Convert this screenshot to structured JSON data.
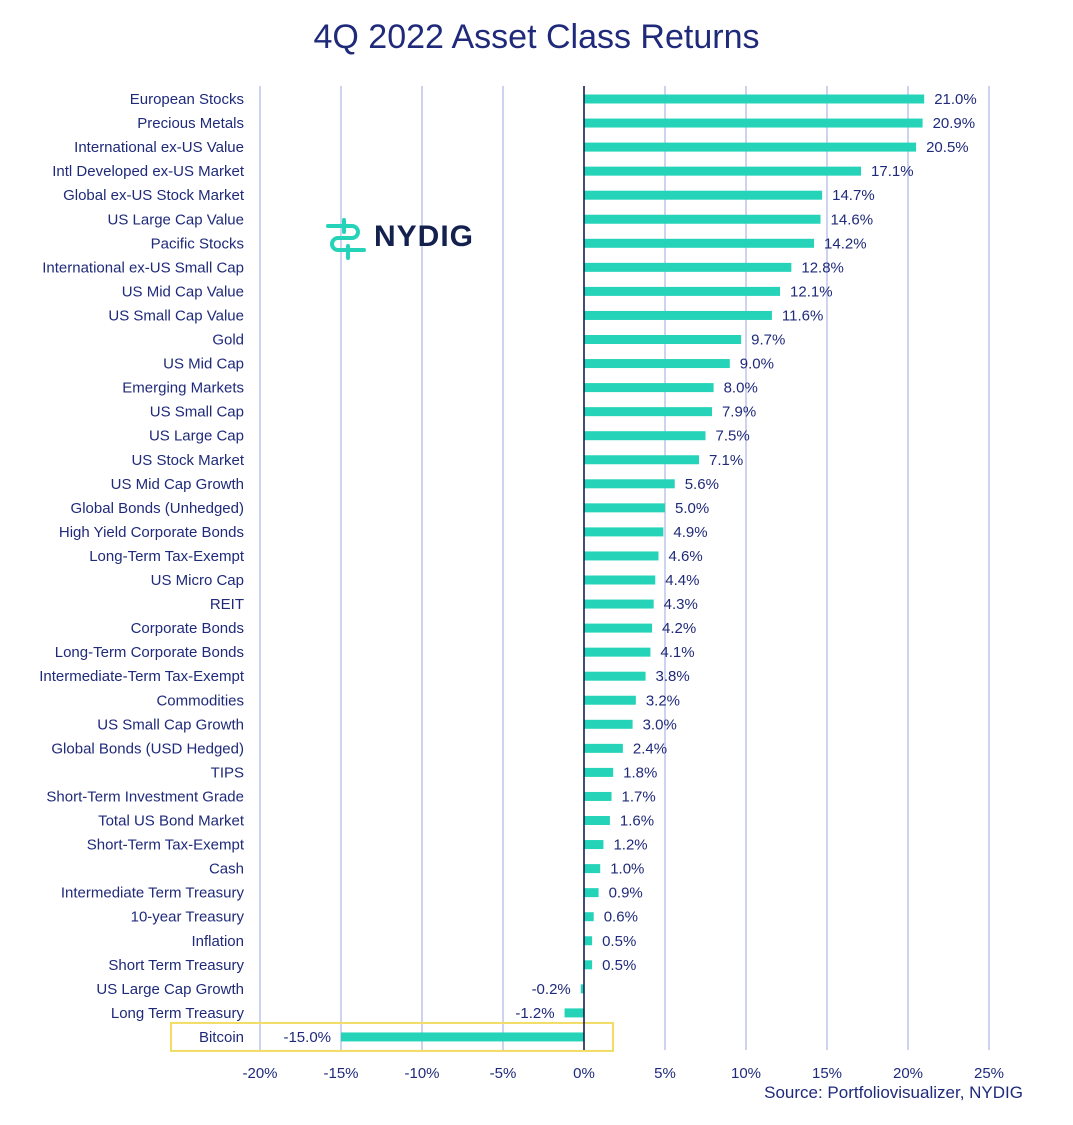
{
  "colors": {
    "bar": "#25d4b8",
    "text": "#1f2a7a",
    "grid": "#b4bbe6",
    "axis": "#14214f",
    "highlight": "#f2dc64"
  },
  "logo": {
    "text": "NYDIG",
    "icon": "nydig-logo-icon"
  },
  "source": "Source: Portfoliovisualizer, NYDIG",
  "chart_data": {
    "type": "bar",
    "orientation": "horizontal",
    "title": "4Q 2022 Asset Class Returns",
    "categories": [
      "European Stocks",
      "Precious Metals",
      "International ex-US Value",
      "Intl Developed ex-US Market",
      "Global ex-US Stock Market",
      "US Large Cap Value",
      "Pacific Stocks",
      "International ex-US Small Cap",
      "US Mid Cap Value",
      "US Small Cap Value",
      "Gold",
      "US Mid Cap",
      "Emerging Markets",
      "US Small Cap",
      "US Large Cap",
      "US Stock Market",
      "US Mid Cap Growth",
      "Global Bonds (Unhedged)",
      "High Yield Corporate Bonds",
      "Long-Term Tax-Exempt",
      "US Micro Cap",
      "REIT",
      "Corporate Bonds",
      "Long-Term Corporate Bonds",
      "Intermediate-Term Tax-Exempt",
      "Commodities",
      "US Small Cap Growth",
      "Global Bonds (USD Hedged)",
      "TIPS",
      "Short-Term Investment Grade",
      "Total US Bond Market",
      "Short-Term Tax-Exempt",
      "Cash",
      "Intermediate Term Treasury",
      "10-year Treasury",
      "Inflation",
      "Short Term Treasury",
      "US Large Cap Growth",
      "Long Term Treasury",
      "Bitcoin"
    ],
    "values": [
      21.0,
      20.9,
      20.5,
      17.1,
      14.7,
      14.6,
      14.2,
      12.8,
      12.1,
      11.6,
      9.7,
      9.0,
      8.0,
      7.9,
      7.5,
      7.1,
      5.6,
      5.0,
      4.9,
      4.6,
      4.4,
      4.3,
      4.2,
      4.1,
      3.8,
      3.2,
      3.0,
      2.4,
      1.8,
      1.7,
      1.6,
      1.2,
      1.0,
      0.9,
      0.6,
      0.5,
      0.5,
      -0.2,
      -1.2,
      -15.0
    ],
    "value_labels": [
      "21.0%",
      "20.9%",
      "20.5%",
      "17.1%",
      "14.7%",
      "14.6%",
      "14.2%",
      "12.8%",
      "12.1%",
      "11.6%",
      "9.7%",
      "9.0%",
      "8.0%",
      "7.9%",
      "7.5%",
      "7.1%",
      "5.6%",
      "5.0%",
      "4.9%",
      "4.6%",
      "4.4%",
      "4.3%",
      "4.2%",
      "4.1%",
      "3.8%",
      "3.2%",
      "3.0%",
      "2.4%",
      "1.8%",
      "1.7%",
      "1.6%",
      "1.2%",
      "1.0%",
      "0.9%",
      "0.6%",
      "0.5%",
      "0.5%",
      "-0.2%",
      "-1.2%",
      "-15.0%"
    ],
    "xlim": [
      -20,
      25
    ],
    "xticks": [
      -20,
      -15,
      -10,
      -5,
      0,
      5,
      10,
      15,
      20,
      25
    ],
    "xtick_labels": [
      "-20%",
      "-15%",
      "-10%",
      "-5%",
      "0%",
      "5%",
      "10%",
      "15%",
      "20%",
      "25%"
    ],
    "grid": true,
    "highlighted_category": "Bitcoin"
  }
}
